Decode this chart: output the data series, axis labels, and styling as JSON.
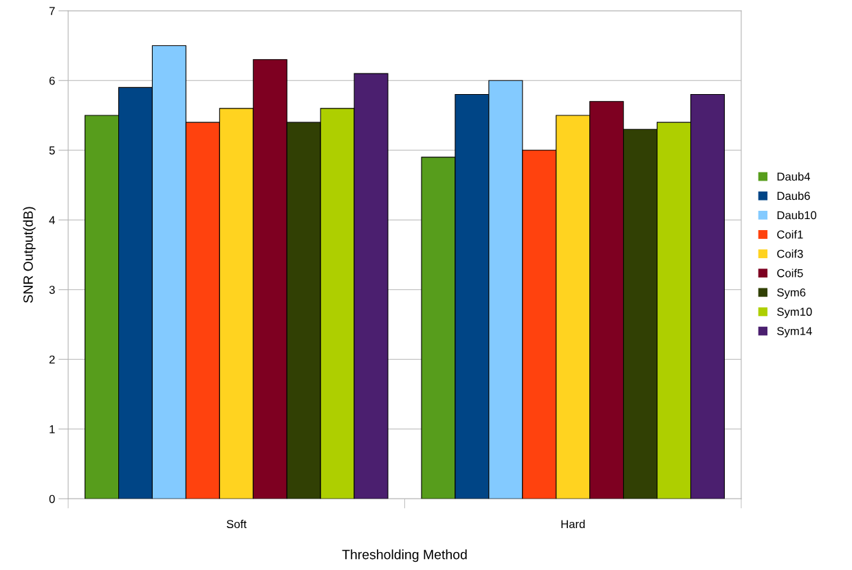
{
  "chart_data": {
    "type": "bar",
    "xlabel": "Thresholding Method",
    "ylabel": "SNR Output(dB)",
    "categories": [
      "Soft",
      "Hard"
    ],
    "series": [
      {
        "name": "Daub4",
        "color": "#579d1c",
        "values": [
          5.5,
          4.9
        ]
      },
      {
        "name": "Daub6",
        "color": "#004586",
        "values": [
          5.9,
          5.8
        ]
      },
      {
        "name": "Daub10",
        "color": "#83caff",
        "values": [
          6.5,
          6.0
        ]
      },
      {
        "name": "Coif1",
        "color": "#ff420e",
        "values": [
          5.4,
          5.0
        ]
      },
      {
        "name": "Coif3",
        "color": "#ffd320",
        "values": [
          5.6,
          5.5
        ]
      },
      {
        "name": "Coif5",
        "color": "#7e0021",
        "values": [
          6.3,
          5.7
        ]
      },
      {
        "name": "Sym6",
        "color": "#314004",
        "values": [
          5.4,
          5.3
        ]
      },
      {
        "name": "Sym10",
        "color": "#aecf00",
        "values": [
          5.6,
          5.4
        ]
      },
      {
        "name": "Sym14",
        "color": "#4b1f6f",
        "values": [
          6.1,
          5.8
        ]
      }
    ],
    "ylim": [
      0,
      7
    ],
    "yticks": [
      0,
      1,
      2,
      3,
      4,
      5,
      6,
      7
    ],
    "grid": "y",
    "legend": "right"
  }
}
